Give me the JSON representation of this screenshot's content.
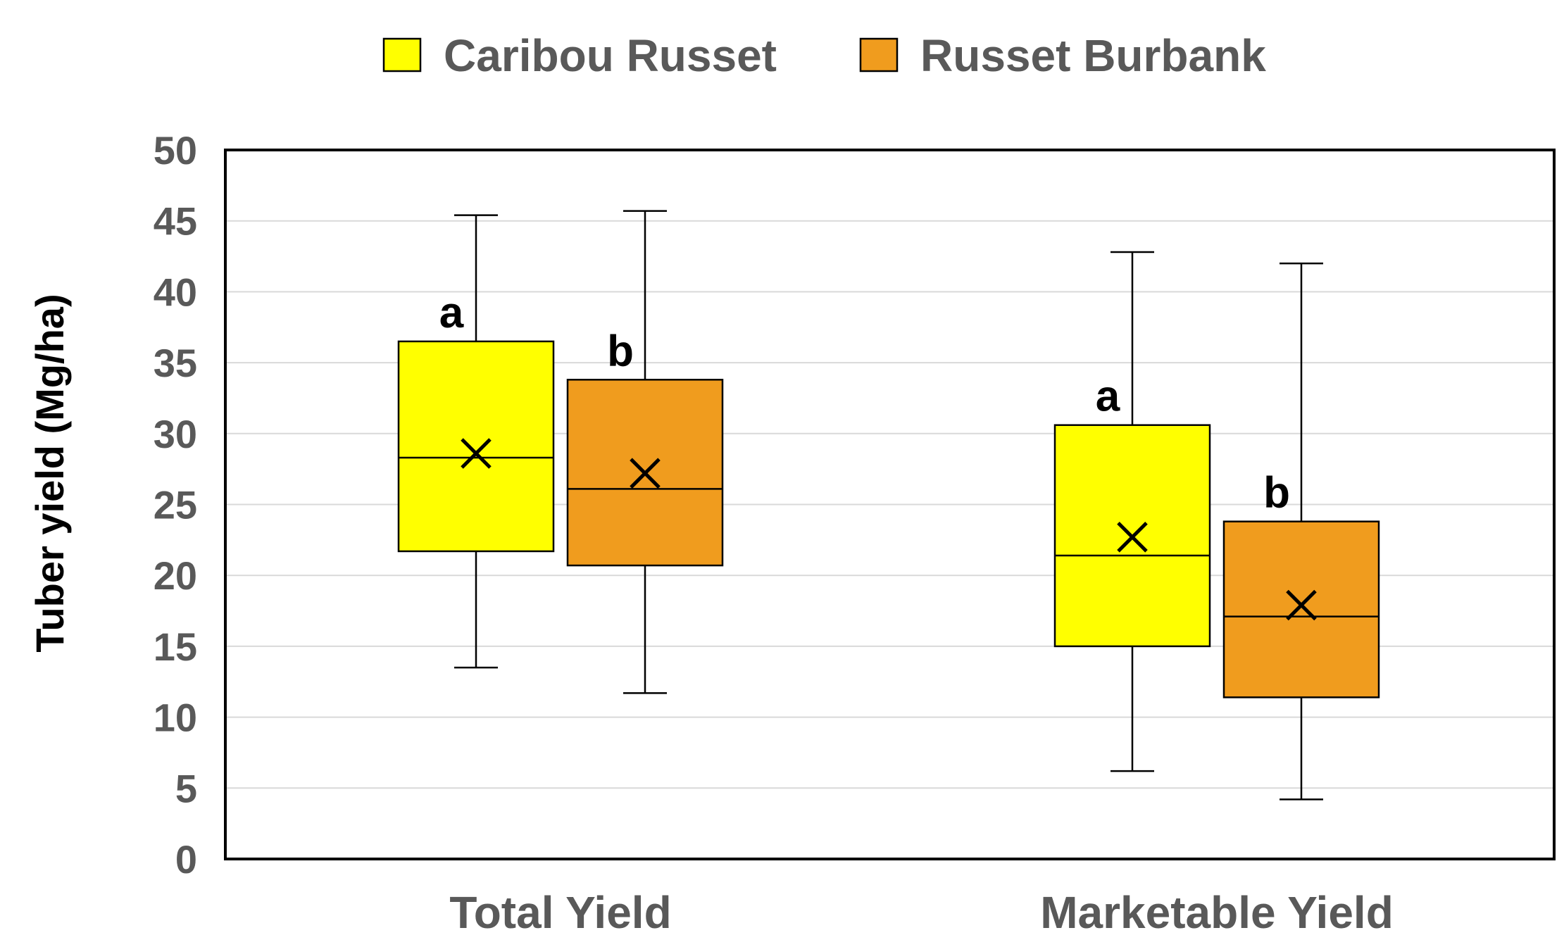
{
  "chart_data": {
    "type": "box",
    "title": "",
    "xlabel": "",
    "ylabel": "Tuber yield (Mg/ha)",
    "ylim": [
      0,
      50
    ],
    "yticks": [
      "0",
      "5",
      "10",
      "15",
      "20",
      "25",
      "30",
      "35",
      "40",
      "45",
      "50"
    ],
    "grid": true,
    "legend_position": "top-center",
    "categories": [
      "Total Yield",
      "Marketable Yield"
    ],
    "series": [
      {
        "name": "Caribou Russet",
        "color": "#FFFF00",
        "boxes": [
          {
            "min": 13.5,
            "q1": 21.7,
            "median": 28.3,
            "q3": 36.5,
            "max": 45.4,
            "mean": 28.6,
            "sig": "a"
          },
          {
            "min": 6.2,
            "q1": 15.0,
            "median": 21.4,
            "q3": 30.6,
            "max": 42.8,
            "mean": 22.7,
            "sig": "a"
          }
        ]
      },
      {
        "name": "Russet Burbank",
        "color": "#F09C1E",
        "boxes": [
          {
            "min": 11.7,
            "q1": 20.7,
            "median": 26.1,
            "q3": 33.8,
            "max": 45.7,
            "mean": 27.2,
            "sig": "b"
          },
          {
            "min": 4.2,
            "q1": 11.4,
            "median": 17.1,
            "q3": 23.8,
            "max": 42.0,
            "mean": 17.9,
            "sig": "b"
          }
        ]
      }
    ]
  }
}
